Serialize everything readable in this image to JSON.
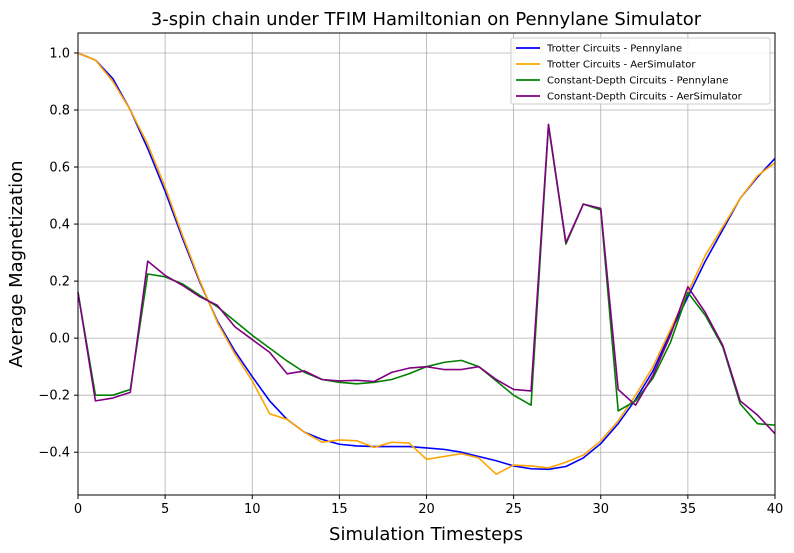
{
  "chart_data": {
    "type": "line",
    "title": "3-spin chain under TFIM Hamiltonian on Pennylane Simulator",
    "xlabel": "Simulation Timesteps",
    "ylabel": "Average Magnetization",
    "xlim": [
      0,
      40
    ],
    "ylim": [
      -0.55,
      1.07
    ],
    "xticks": [
      0,
      5,
      10,
      15,
      20,
      25,
      30,
      35,
      40
    ],
    "yticks": [
      -0.4,
      -0.2,
      0.0,
      0.2,
      0.4,
      0.6,
      0.8,
      1.0
    ],
    "ytick_labels": [
      "−0.4",
      "−0.2",
      "0.0",
      "0.2",
      "0.4",
      "0.6",
      "0.8",
      "1.0"
    ],
    "grid": true,
    "legend_position": "top-right",
    "x": [
      0,
      1,
      2,
      3,
      4,
      5,
      6,
      7,
      8,
      9,
      10,
      11,
      12,
      13,
      14,
      15,
      16,
      17,
      18,
      19,
      20,
      21,
      22,
      23,
      24,
      25,
      26,
      27,
      28,
      29,
      30,
      31,
      32,
      33,
      34,
      35,
      36,
      37,
      38,
      39,
      40
    ],
    "series": [
      {
        "name": "Trotter Circuits - Pennylane",
        "color": "#0000ff",
        "values": [
          1.0,
          0.975,
          0.91,
          0.8,
          0.665,
          0.515,
          0.35,
          0.195,
          0.06,
          -0.045,
          -0.135,
          -0.22,
          -0.285,
          -0.33,
          -0.355,
          -0.372,
          -0.378,
          -0.38,
          -0.38,
          -0.38,
          -0.385,
          -0.39,
          -0.4,
          -0.415,
          -0.43,
          -0.448,
          -0.458,
          -0.46,
          -0.45,
          -0.42,
          -0.37,
          -0.3,
          -0.215,
          -0.115,
          0.02,
          0.145,
          0.27,
          0.38,
          0.49,
          0.565,
          0.63
        ]
      },
      {
        "name": "Trotter Circuits - AerSimulator",
        "color": "#ffa500",
        "values": [
          1.0,
          0.975,
          0.9,
          0.8,
          0.68,
          0.53,
          0.36,
          0.2,
          0.055,
          -0.055,
          -0.15,
          -0.265,
          -0.285,
          -0.33,
          -0.365,
          -0.357,
          -0.36,
          -0.383,
          -0.365,
          -0.368,
          -0.425,
          -0.415,
          -0.405,
          -0.42,
          -0.477,
          -0.445,
          -0.448,
          -0.455,
          -0.435,
          -0.41,
          -0.36,
          -0.29,
          -0.2,
          -0.1,
          0.03,
          0.16,
          0.29,
          0.39,
          0.49,
          0.57,
          0.615
        ]
      },
      {
        "name": "Constant-Depth Circuits - Pennylane",
        "color": "#008000",
        "values": [
          0.16,
          -0.2,
          -0.2,
          -0.18,
          0.225,
          0.215,
          0.19,
          0.15,
          0.11,
          0.06,
          0.01,
          -0.035,
          -0.08,
          -0.12,
          -0.145,
          -0.155,
          -0.16,
          -0.155,
          -0.145,
          -0.125,
          -0.1,
          -0.085,
          -0.078,
          -0.1,
          -0.15,
          -0.2,
          -0.235,
          0.745,
          0.33,
          0.47,
          0.45,
          -0.255,
          -0.22,
          -0.14,
          -0.015,
          0.16,
          0.08,
          -0.03,
          -0.23,
          -0.3,
          -0.305
        ]
      },
      {
        "name": "Constant-Depth Circuits - AerSimulator",
        "color": "#800080",
        "values": [
          0.16,
          -0.22,
          -0.21,
          -0.19,
          0.27,
          0.22,
          0.185,
          0.145,
          0.115,
          0.04,
          -0.005,
          -0.05,
          -0.125,
          -0.115,
          -0.145,
          -0.15,
          -0.148,
          -0.152,
          -0.12,
          -0.105,
          -0.1,
          -0.11,
          -0.11,
          -0.1,
          -0.145,
          -0.18,
          -0.185,
          0.75,
          0.335,
          0.47,
          0.455,
          -0.18,
          -0.235,
          -0.13,
          0.01,
          0.18,
          0.09,
          -0.025,
          -0.22,
          -0.27,
          -0.335
        ]
      }
    ]
  }
}
